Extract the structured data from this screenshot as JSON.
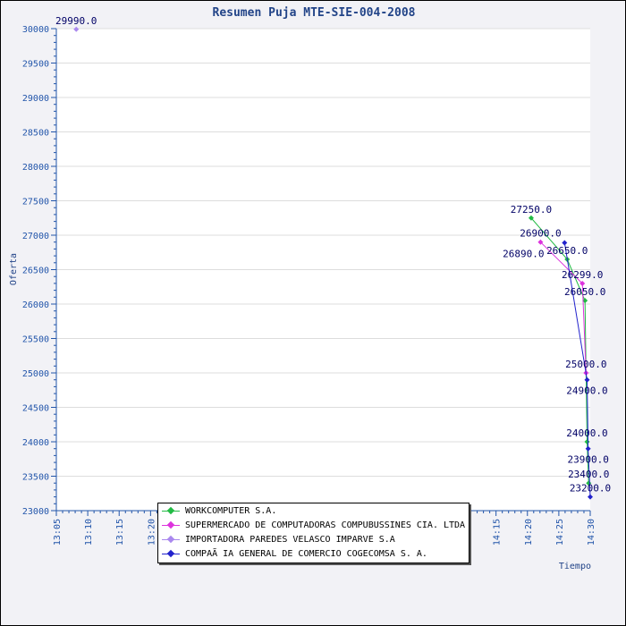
{
  "chart_data": {
    "type": "line",
    "title": "Resumen Puja MTE-SIE-004-2008",
    "xlabel": "Tiempo",
    "ylabel": "Oferta",
    "xlim": [
      "13:05",
      "14:30"
    ],
    "ylim": [
      23000,
      30000
    ],
    "x_ticks": [
      "13:05",
      "13:10",
      "13:15",
      "13:20",
      "14:15",
      "14:20",
      "14:25",
      "14:30"
    ],
    "y_ticks": [
      23000,
      23500,
      24000,
      24500,
      25000,
      25500,
      26000,
      26500,
      27000,
      27500,
      28000,
      28500,
      29000,
      29500,
      30000
    ],
    "grid": true,
    "legend_position": "bottom-center",
    "series": [
      {
        "name": "WORKCOMPUTER S.A.",
        "color": "#22bb44",
        "points": [
          [
            "14:20:36",
            27250
          ],
          [
            "14:26:20",
            26650
          ],
          [
            "14:29:10",
            26050
          ],
          [
            "14:29:30",
            24000
          ],
          [
            "14:29:45",
            23400
          ]
        ]
      },
      {
        "name": "SUPERMERCADO DE COMPUTADORAS COMPUBUSSINES CIA. LTDA",
        "color": "#dd33dd",
        "points": [
          [
            "14:22:05",
            26900
          ],
          [
            "14:28:45",
            26299
          ],
          [
            "14:29:20",
            25000
          ]
        ]
      },
      {
        "name": "IMPORTADORA PAREDES VELASCO IMPARVE S.A",
        "color": "#aa88ee",
        "points": [
          [
            "13:08:10",
            29990
          ]
        ]
      },
      {
        "name": "COMPAÃ IA GENERAL DE COMERCIO COGECOMSA S. A.",
        "color": "#2222cc",
        "points": [
          [
            "14:25:55",
            26890
          ],
          [
            "14:29:30",
            24900
          ],
          [
            "14:29:40",
            23900
          ],
          [
            "14:30:00",
            23200
          ]
        ]
      }
    ]
  }
}
